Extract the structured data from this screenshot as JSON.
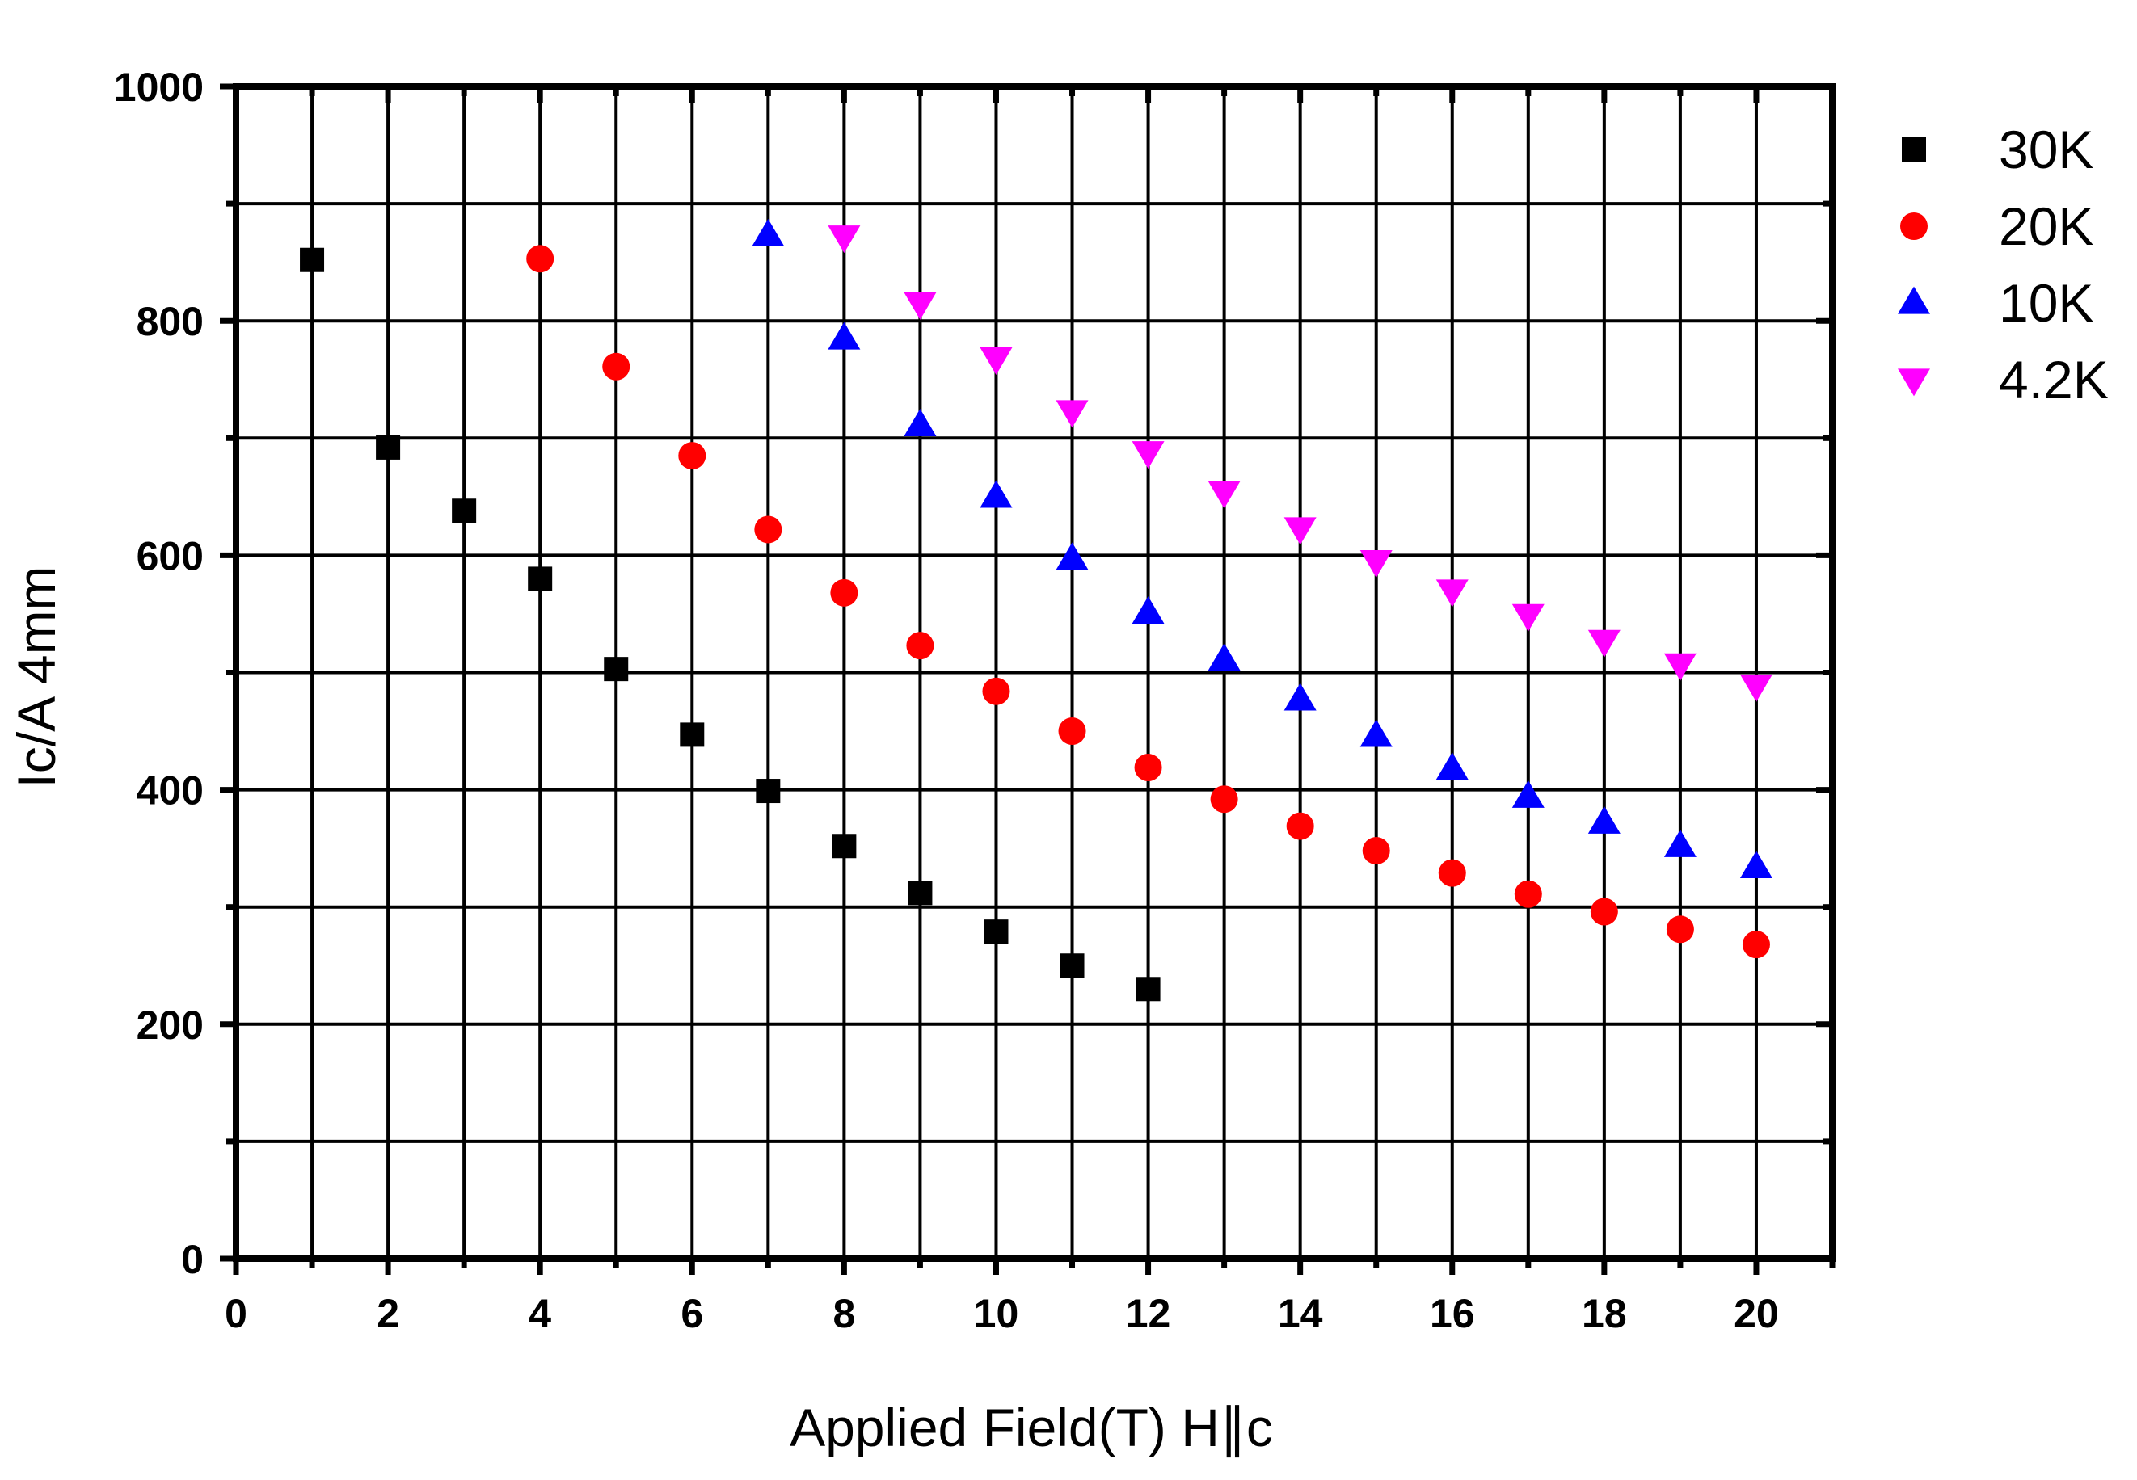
{
  "chart_data": {
    "type": "scatter",
    "title": "",
    "xlabel": "Applied Field(T) H∥c",
    "ylabel": "Ic/A 4mm",
    "xlim": [
      0,
      21
    ],
    "ylim": [
      0,
      1000
    ],
    "xticks": [
      0,
      2,
      4,
      6,
      8,
      10,
      12,
      14,
      16,
      18,
      20
    ],
    "yticks": [
      0,
      200,
      400,
      600,
      800,
      1000
    ],
    "grid": true,
    "legend_position": "outside-top-right",
    "series": [
      {
        "name": "30K",
        "marker": "square",
        "color": "#000000",
        "x": [
          1,
          2,
          3,
          4,
          5,
          6,
          7,
          8,
          9,
          10,
          11,
          12
        ],
        "y": [
          852,
          692,
          638,
          580,
          503,
          447,
          399,
          352,
          312,
          279,
          250,
          230
        ]
      },
      {
        "name": "20K",
        "marker": "circle",
        "color": "#ff0000",
        "x": [
          4,
          5,
          6,
          7,
          8,
          9,
          10,
          11,
          12,
          13,
          14,
          15,
          16,
          17,
          18,
          19,
          20
        ],
        "y": [
          853,
          761,
          685,
          622,
          568,
          523,
          484,
          450,
          419,
          392,
          369,
          348,
          329,
          311,
          296,
          281,
          268
        ]
      },
      {
        "name": "10K",
        "marker": "triangle-up",
        "color": "#0000ff",
        "x": [
          7,
          8,
          9,
          10,
          11,
          12,
          13,
          14,
          15,
          16,
          17,
          18,
          19,
          20
        ],
        "y": [
          873,
          785,
          711,
          650,
          597,
          551,
          511,
          477,
          446,
          418,
          394,
          372,
          352,
          334
        ]
      },
      {
        "name": "4.2K",
        "marker": "triangle-down",
        "color": "#ff00ff",
        "x": [
          8,
          9,
          10,
          11,
          12,
          13,
          14,
          15,
          16,
          17,
          18,
          19,
          20
        ],
        "y": [
          872,
          815,
          768,
          723,
          688,
          654,
          623,
          595,
          570,
          549,
          527,
          507,
          489
        ]
      }
    ]
  }
}
